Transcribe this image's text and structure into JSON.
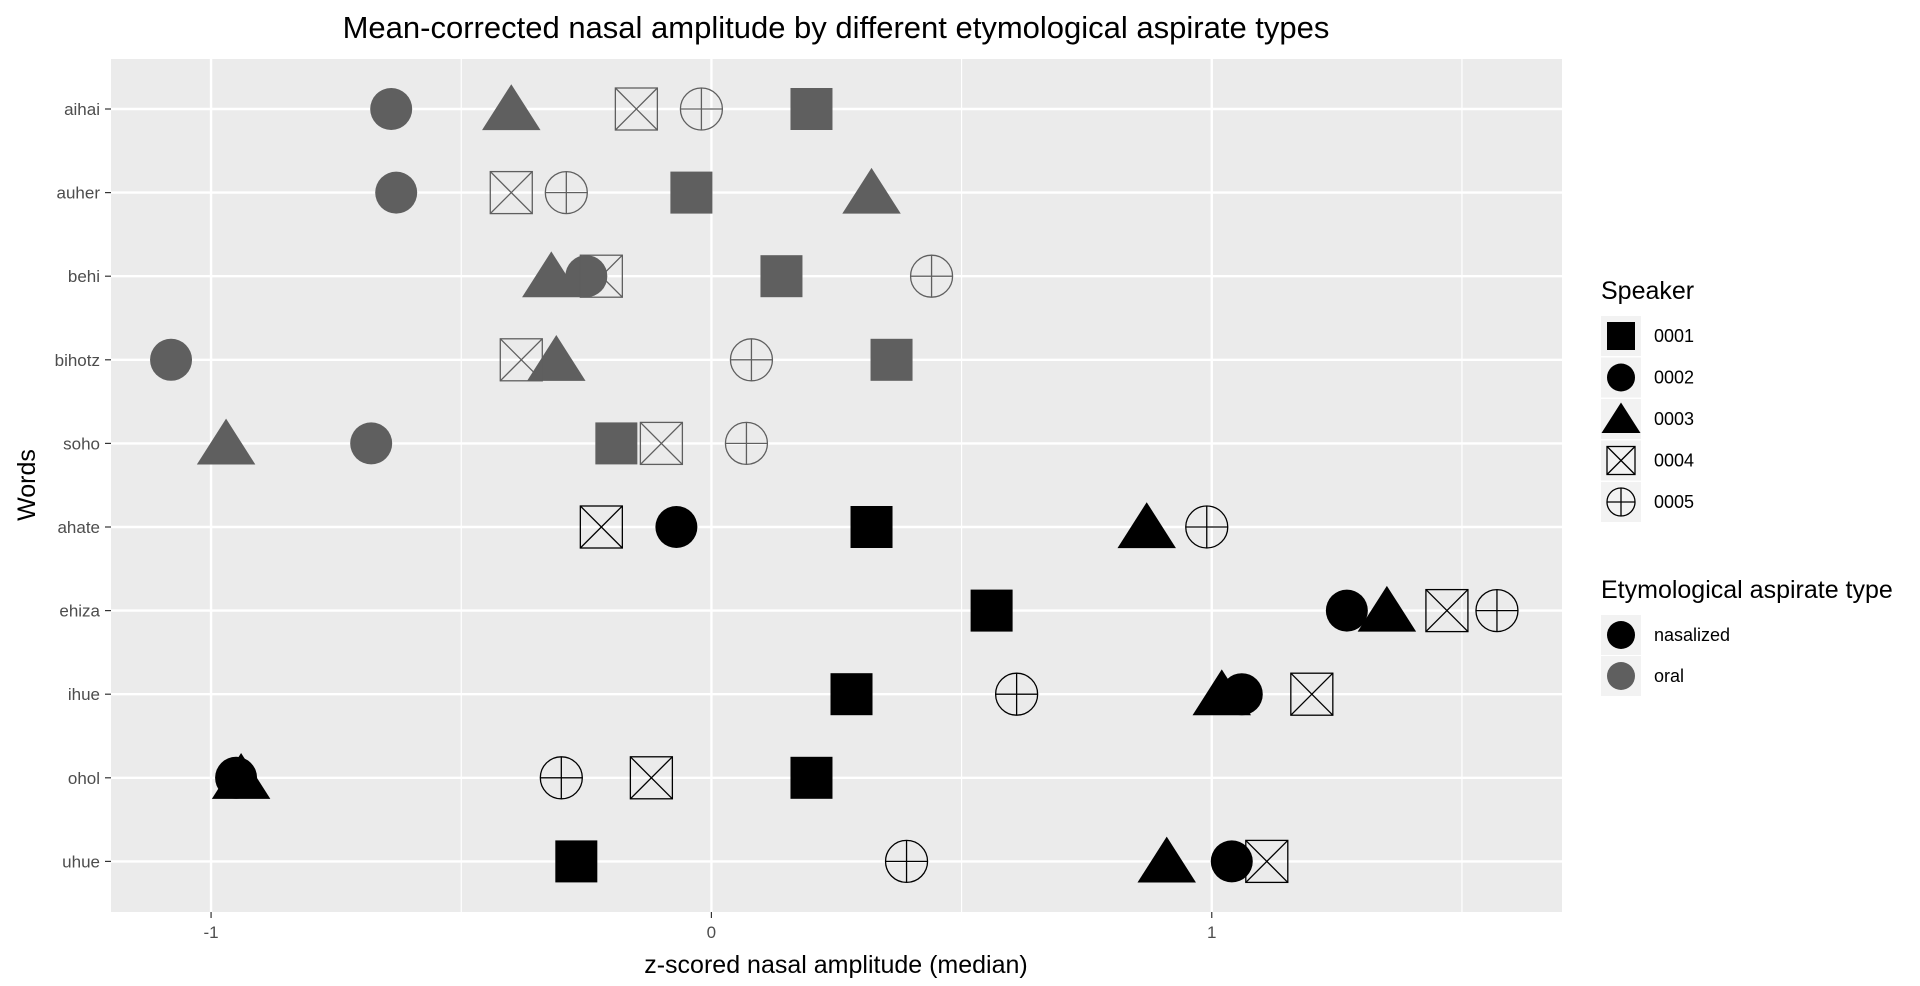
{
  "chart_data": {
    "type": "scatter",
    "title": "Mean-corrected nasal amplitude by different etymological aspirate types",
    "xlabel": "z-scored nasal amplitude (median)",
    "ylabel": "Words",
    "xlim": [
      -1.2,
      1.7
    ],
    "x_ticks": [
      -1,
      0,
      1
    ],
    "x_tick_labels": [
      "-1",
      "0",
      "1"
    ],
    "x_minor_ticks": [
      -0.5,
      0.5,
      1.5
    ],
    "categories": [
      "aihai",
      "auher",
      "behi",
      "bihotz",
      "soho",
      "ahate",
      "ehiza",
      "ihue",
      "ohol",
      "uhue"
    ],
    "grid": true,
    "legend_position": "right",
    "speaker_legend": {
      "title": "Speaker",
      "items": [
        {
          "label": "0001",
          "shape": "square"
        },
        {
          "label": "0002",
          "shape": "circle"
        },
        {
          "label": "0003",
          "shape": "triangle"
        },
        {
          "label": "0004",
          "shape": "boxed-x"
        },
        {
          "label": "0005",
          "shape": "circled-plus"
        }
      ]
    },
    "type_legend": {
      "title": "Etymological aspirate type",
      "items": [
        {
          "label": "nasalized",
          "color": "#000000"
        },
        {
          "label": "oral",
          "color": "#5f5f5f"
        }
      ]
    },
    "series": [
      {
        "speaker": "0001",
        "shape": "square",
        "points": [
          {
            "word": "aihai",
            "x": 0.2,
            "type": "oral"
          },
          {
            "word": "auher",
            "x": -0.04,
            "type": "oral"
          },
          {
            "word": "behi",
            "x": 0.14,
            "type": "oral"
          },
          {
            "word": "bihotz",
            "x": 0.36,
            "type": "oral"
          },
          {
            "word": "soho",
            "x": -0.19,
            "type": "oral"
          },
          {
            "word": "ahate",
            "x": 0.32,
            "type": "nasalized"
          },
          {
            "word": "ehiza",
            "x": 0.56,
            "type": "nasalized"
          },
          {
            "word": "ihue",
            "x": 0.28,
            "type": "nasalized"
          },
          {
            "word": "ohol",
            "x": 0.2,
            "type": "nasalized"
          },
          {
            "word": "uhue",
            "x": -0.27,
            "type": "nasalized"
          }
        ]
      },
      {
        "speaker": "0002",
        "shape": "circle",
        "points": [
          {
            "word": "aihai",
            "x": -0.64,
            "type": "oral"
          },
          {
            "word": "auher",
            "x": -0.63,
            "type": "oral"
          },
          {
            "word": "behi",
            "x": -0.25,
            "type": "oral"
          },
          {
            "word": "bihotz",
            "x": -1.08,
            "type": "oral"
          },
          {
            "word": "soho",
            "x": -0.68,
            "type": "oral"
          },
          {
            "word": "ahate",
            "x": -0.07,
            "type": "nasalized"
          },
          {
            "word": "ehiza",
            "x": 1.27,
            "type": "nasalized"
          },
          {
            "word": "ihue",
            "x": 1.06,
            "type": "nasalized"
          },
          {
            "word": "ohol",
            "x": -0.95,
            "type": "nasalized"
          },
          {
            "word": "uhue",
            "x": 1.04,
            "type": "nasalized"
          }
        ]
      },
      {
        "speaker": "0003",
        "shape": "triangle",
        "points": [
          {
            "word": "aihai",
            "x": -0.4,
            "type": "oral"
          },
          {
            "word": "auher",
            "x": 0.32,
            "type": "oral"
          },
          {
            "word": "behi",
            "x": -0.32,
            "type": "oral"
          },
          {
            "word": "bihotz",
            "x": -0.31,
            "type": "oral"
          },
          {
            "word": "soho",
            "x": -0.97,
            "type": "oral"
          },
          {
            "word": "ahate",
            "x": 0.87,
            "type": "nasalized"
          },
          {
            "word": "ehiza",
            "x": 1.35,
            "type": "nasalized"
          },
          {
            "word": "ihue",
            "x": 1.02,
            "type": "nasalized"
          },
          {
            "word": "ohol",
            "x": -0.94,
            "type": "nasalized"
          },
          {
            "word": "uhue",
            "x": 0.91,
            "type": "nasalized"
          }
        ]
      },
      {
        "speaker": "0004",
        "shape": "boxed-x",
        "points": [
          {
            "word": "aihai",
            "x": -0.15,
            "type": "oral"
          },
          {
            "word": "auher",
            "x": -0.4,
            "type": "oral"
          },
          {
            "word": "behi",
            "x": -0.22,
            "type": "oral"
          },
          {
            "word": "bihotz",
            "x": -0.38,
            "type": "oral"
          },
          {
            "word": "soho",
            "x": -0.1,
            "type": "oral"
          },
          {
            "word": "ahate",
            "x": -0.22,
            "type": "nasalized"
          },
          {
            "word": "ehiza",
            "x": 1.47,
            "type": "nasalized"
          },
          {
            "word": "ihue",
            "x": 1.2,
            "type": "nasalized"
          },
          {
            "word": "ohol",
            "x": -0.12,
            "type": "nasalized"
          },
          {
            "word": "uhue",
            "x": 1.11,
            "type": "nasalized"
          }
        ]
      },
      {
        "speaker": "0005",
        "shape": "circled-plus",
        "points": [
          {
            "word": "aihai",
            "x": -0.02,
            "type": "oral"
          },
          {
            "word": "auher",
            "x": -0.29,
            "type": "oral"
          },
          {
            "word": "behi",
            "x": 0.44,
            "type": "oral"
          },
          {
            "word": "bihotz",
            "x": 0.08,
            "type": "oral"
          },
          {
            "word": "soho",
            "x": 0.07,
            "type": "oral"
          },
          {
            "word": "ahate",
            "x": 0.99,
            "type": "nasalized"
          },
          {
            "word": "ehiza",
            "x": 1.57,
            "type": "nasalized"
          },
          {
            "word": "ihue",
            "x": 0.61,
            "type": "nasalized"
          },
          {
            "word": "ohol",
            "x": -0.3,
            "type": "nasalized"
          },
          {
            "word": "uhue",
            "x": 0.39,
            "type": "nasalized"
          }
        ]
      }
    ]
  }
}
